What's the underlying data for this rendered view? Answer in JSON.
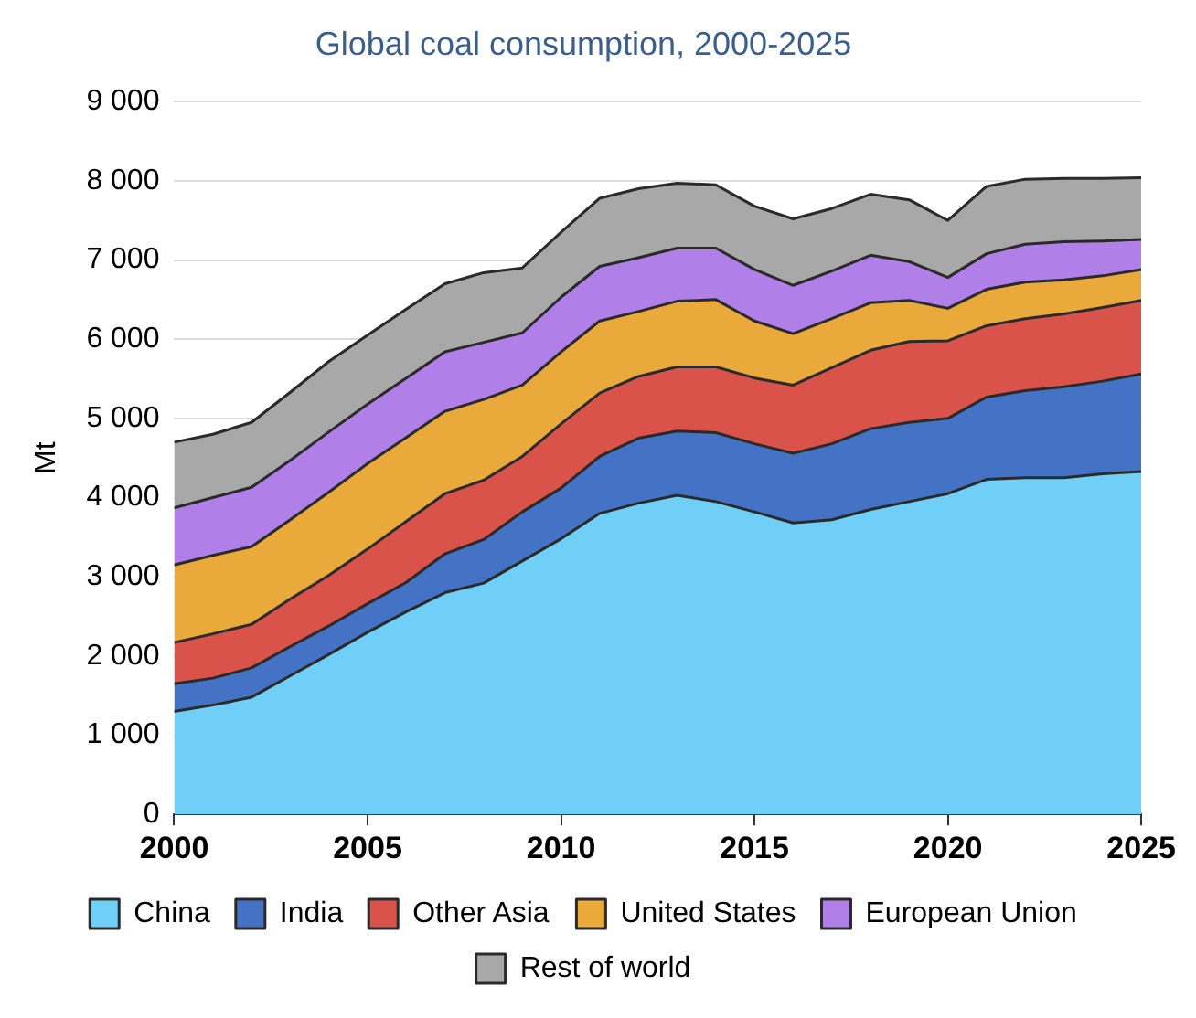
{
  "chart_data": {
    "type": "area",
    "stacked": true,
    "title": "Global coal consumption, 2000-2025",
    "ylabel": "Mt",
    "x": [
      2000,
      2001,
      2002,
      2003,
      2004,
      2005,
      2006,
      2007,
      2008,
      2009,
      2010,
      2011,
      2012,
      2013,
      2014,
      2015,
      2016,
      2017,
      2018,
      2019,
      2020,
      2021,
      2022,
      2023,
      2024,
      2025
    ],
    "series": [
      {
        "name": "China",
        "color": "#6fcff6",
        "values": [
          1300,
          1380,
          1480,
          1750,
          2020,
          2300,
          2560,
          2800,
          2920,
          3200,
          3480,
          3800,
          3930,
          4030,
          3950,
          3820,
          3680,
          3720,
          3850,
          3950,
          4050,
          4230,
          4250,
          4250,
          4300,
          4330
        ]
      },
      {
        "name": "India",
        "color": "#4472c4",
        "values": [
          350,
          340,
          370,
          370,
          360,
          360,
          370,
          490,
          550,
          620,
          640,
          720,
          820,
          810,
          870,
          860,
          880,
          960,
          1020,
          1000,
          950,
          1040,
          1100,
          1150,
          1170,
          1230
        ]
      },
      {
        "name": "Other Asia",
        "color": "#d9534a",
        "values": [
          520,
          560,
          550,
          600,
          640,
          690,
          770,
          760,
          750,
          700,
          810,
          800,
          780,
          810,
          830,
          830,
          860,
          960,
          990,
          1020,
          980,
          900,
          910,
          920,
          930,
          930
        ]
      },
      {
        "name": "United States",
        "color": "#e9a93b",
        "values": [
          980,
          990,
          980,
          1000,
          1050,
          1080,
          1060,
          1040,
          1020,
          900,
          910,
          910,
          820,
          830,
          850,
          720,
          650,
          620,
          600,
          520,
          410,
          460,
          460,
          430,
          400,
          390
        ]
      },
      {
        "name": "European Union",
        "color": "#b07fe8",
        "values": [
          720,
          730,
          750,
          750,
          760,
          750,
          750,
          750,
          720,
          660,
          690,
          690,
          680,
          670,
          650,
          650,
          610,
          600,
          600,
          490,
          390,
          450,
          480,
          480,
          440,
          380
        ]
      },
      {
        "name": "Rest of world",
        "color": "#a8a8a8",
        "values": [
          830,
          800,
          820,
          860,
          890,
          870,
          870,
          860,
          880,
          820,
          820,
          860,
          870,
          820,
          800,
          800,
          840,
          790,
          770,
          780,
          720,
          850,
          820,
          800,
          790,
          780
        ]
      }
    ],
    "xlim": [
      2000,
      2025
    ],
    "xticks": [
      2000,
      2005,
      2010,
      2015,
      2020,
      2025
    ],
    "ylim": [
      0,
      9000
    ],
    "yticks": [
      0,
      {
        "value": 1000,
        "label": "1 000"
      },
      {
        "value": 2000,
        "label": "2 000"
      },
      {
        "value": 3000,
        "label": "3 000"
      },
      {
        "value": 4000,
        "label": "4 000"
      },
      {
        "value": 5000,
        "label": "5 000"
      },
      {
        "value": 6000,
        "label": "6 000"
      },
      {
        "value": 7000,
        "label": "7 000"
      },
      {
        "value": 8000,
        "label": "8 000"
      },
      {
        "value": 9000,
        "label": "9 000"
      }
    ],
    "grid": "y",
    "legend": "bottom"
  }
}
